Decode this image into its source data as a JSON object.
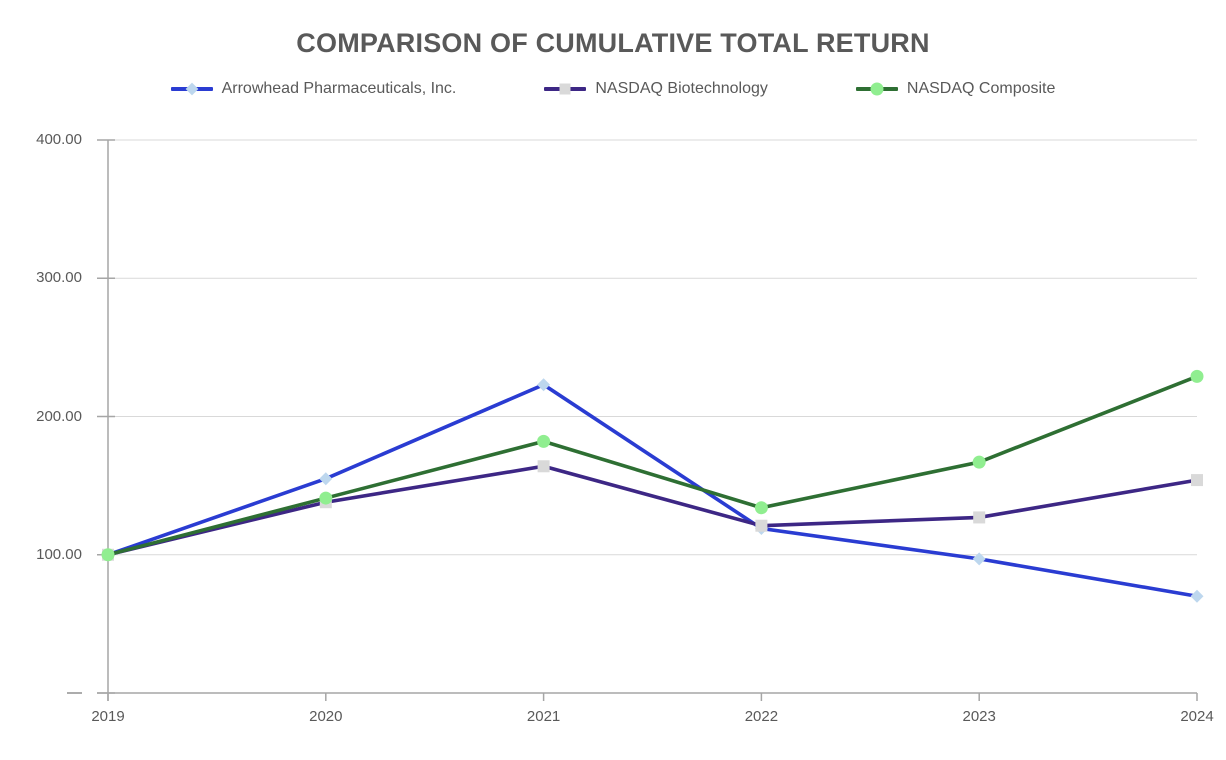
{
  "chart_data": {
    "type": "line",
    "title": "COMPARISON OF CUMULATIVE TOTAL RETURN",
    "categories": [
      "2019",
      "2020",
      "2021",
      "2022",
      "2023",
      "2024"
    ],
    "series": [
      {
        "name": "Arrowhead Pharmaceuticals, Inc.",
        "values": [
          100.0,
          155.0,
          223.0,
          119.0,
          97.0,
          70.0
        ],
        "color": "#2A3CD2",
        "marker": {
          "shape": "diamond",
          "fill": "#BDD7EE"
        }
      },
      {
        "name": "NASDAQ Biotechnology",
        "values": [
          100.0,
          138.0,
          164.0,
          121.0,
          127.0,
          154.0
        ],
        "color": "#3D2785",
        "marker": {
          "shape": "square",
          "fill": "#D9D9D9"
        }
      },
      {
        "name": "NASDAQ Composite",
        "values": [
          100.0,
          141.0,
          182.0,
          134.0,
          167.0,
          229.0
        ],
        "color": "#2E6F33",
        "marker": {
          "shape": "circle",
          "fill": "#90EE90"
        }
      }
    ],
    "y_axis": {
      "min": 0,
      "max": 400,
      "ticks": [
        {
          "label": "400.00",
          "value": 400
        },
        {
          "label": "300.00",
          "value": 300
        },
        {
          "label": "200.00",
          "value": 200
        },
        {
          "label": "100.00",
          "value": 100
        },
        {
          "label": "—",
          "value": 0
        }
      ]
    },
    "grid": "horizontal",
    "legend_position": "top",
    "colors": {
      "title_text": "#595959",
      "legend_text": "#595959",
      "axis_text": "#595959",
      "gridline": "#D9D9D9",
      "axis_line": "#A6A6A6"
    }
  }
}
